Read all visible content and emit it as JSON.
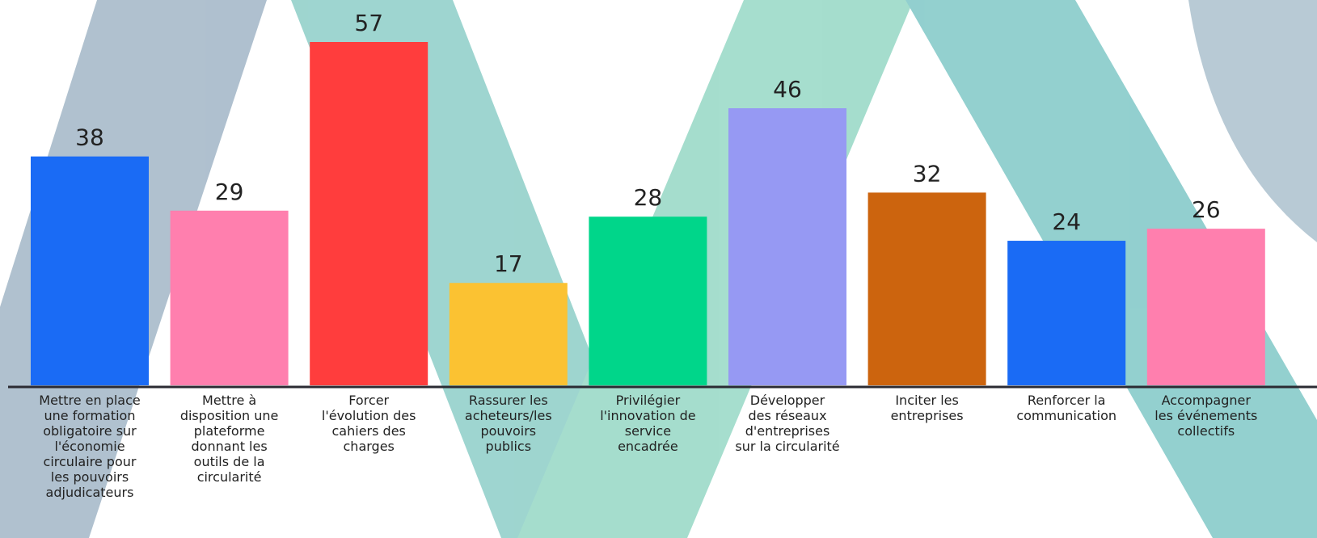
{
  "chart_data": {
    "type": "bar",
    "categories": [
      "Mettre en place\nune formation\nobligatoire sur\nl'économie\ncirculaire pour\nles pouvoirs\nadjudicateurs",
      "Mettre à\ndisposition une\nplateforme\ndonnant les\noutils de la\ncircularité",
      "Forcer\nl'évolution des\ncahiers des\ncharges",
      "Rassurer les\nacheteurs/les\npouvoirs\npublics",
      "Privilégier\nl'innovation de\nservice\nencadrée",
      "Développer\ndes réseaux\nd'entreprises\nsur la circularité",
      "Inciter les\nentreprises",
      "Renforcer la\ncommunication",
      "Accompagner\nles événements\ncollectifs"
    ],
    "values": [
      38,
      29,
      57,
      17,
      28,
      46,
      32,
      24,
      26
    ],
    "colors": [
      "#1a6bf5",
      "#ff7fae",
      "#ff3d3d",
      "#fbc232",
      "#00d68a",
      "#9699f3",
      "#cc640e",
      "#1a6bf5",
      "#ff7fae"
    ]
  }
}
